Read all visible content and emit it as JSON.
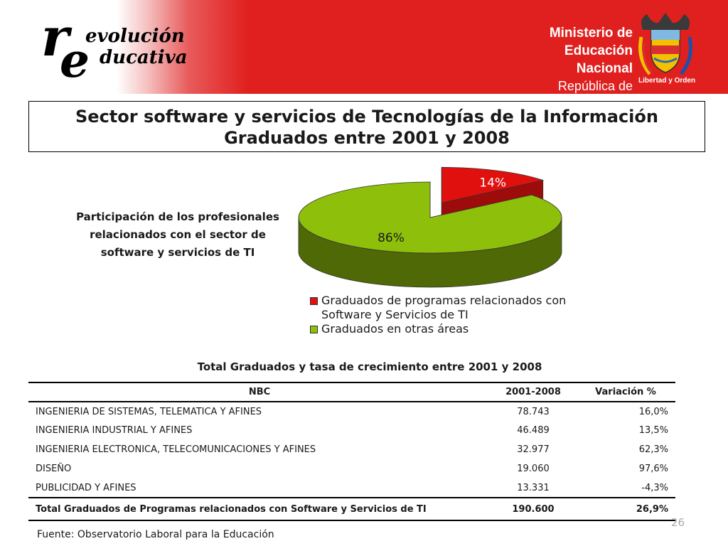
{
  "header": {
    "logo_line1": "evolución",
    "logo_line2": "ducativa",
    "logo_r": "r",
    "logo_e": "e",
    "ministry_line1": "Ministerio de",
    "ministry_line2": "Educación Nacional",
    "ministry_line3": "República de Colombia",
    "motto": "Libertad y Orden",
    "crest_icon": "coat-of-arms-icon"
  },
  "title": {
    "line1": "Sector software y servicios de Tecnologías de la Información",
    "line2": "Graduados entre 2001 y 2008"
  },
  "chart_caption": {
    "line1": "Participación de los profesionales",
    "line2": "relacionados con el sector de",
    "line3": "software y servicios de TI"
  },
  "chart_data": {
    "type": "pie",
    "title": "",
    "slices": [
      {
        "label": "Graduados de programas relacionados con Software y Servicios de TI",
        "value": 14,
        "display": "14%",
        "color": "#e0100e"
      },
      {
        "label": "Graduados en otras áreas",
        "value": 86,
        "display": "86%",
        "color": "#8ebf0a"
      }
    ],
    "legend": {
      "placement": "bottom",
      "items": [
        {
          "line1": "Graduados de programas relacionados con",
          "line2": "Software y Servicios de TI",
          "color": "#e0100e"
        },
        {
          "line1": "Graduados en otras áreas",
          "line2": "",
          "color": "#8ebf0a"
        }
      ]
    }
  },
  "table": {
    "title": "Total Graduados y tasa de crecimiento entre 2001 y 2008",
    "headers": [
      "NBC",
      "2001-2008",
      "Variación %"
    ],
    "rows": [
      [
        "INGENIERIA DE SISTEMAS, TELEMATICA Y AFINES",
        "78.743",
        "16,0%"
      ],
      [
        "INGENIERIA INDUSTRIAL Y AFINES",
        "46.489",
        "13,5%"
      ],
      [
        "INGENIERIA ELECTRONICA, TELECOMUNICACIONES Y AFINES",
        "32.977",
        "62,3%"
      ],
      [
        "DISEÑO",
        "19.060",
        "97,6%"
      ],
      [
        "PUBLICIDAD Y AFINES",
        "13.331",
        "-4,3%"
      ]
    ],
    "total": [
      "Total  Graduados de Programas relacionados con Software y Servicios de TI",
      "190.600",
      "26,9%"
    ]
  },
  "source": "Fuente: Observatorio Laboral para la Educación",
  "page_number": "26"
}
